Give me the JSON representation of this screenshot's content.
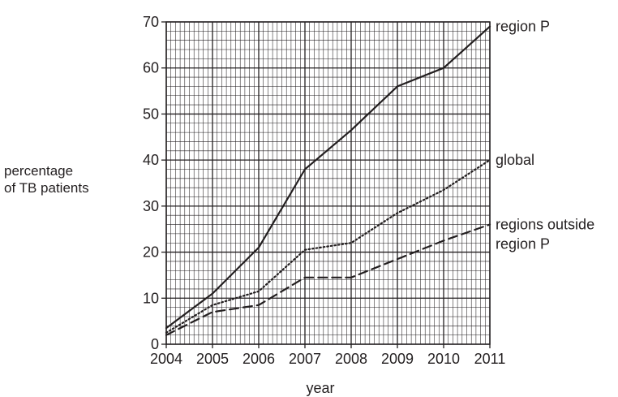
{
  "chart_data": {
    "type": "line",
    "title": "",
    "xlabel": "year",
    "ylabel_lines": [
      "percentage",
      "of TB patients"
    ],
    "x": [
      2004,
      2005,
      2006,
      2007,
      2008,
      2009,
      2010,
      2011
    ],
    "xlim": [
      2004,
      2011
    ],
    "ylim": [
      0,
      70
    ],
    "x_ticks": [
      2004,
      2005,
      2006,
      2007,
      2008,
      2009,
      2010,
      2011
    ],
    "y_ticks": [
      0,
      10,
      20,
      30,
      40,
      50,
      60,
      70
    ],
    "grid": true,
    "series": [
      {
        "key": "region-p",
        "name": "region P",
        "style": "solid",
        "values": [
          3.5,
          11,
          21,
          38,
          46.5,
          56,
          60,
          69
        ]
      },
      {
        "key": "global",
        "name": "global",
        "style": "dotted",
        "values": [
          2.5,
          8.5,
          11.5,
          20.5,
          22,
          28.5,
          33.5,
          40
        ]
      },
      {
        "key": "regions-outside",
        "name": "regions outside region P",
        "style": "dashed",
        "label_lines": [
          "regions outside",
          "region P"
        ],
        "values": [
          2,
          7,
          8.5,
          14.5,
          14.5,
          18.5,
          22.5,
          26
        ]
      }
    ],
    "colors": {
      "line": "#231f20",
      "grid": "#231f20",
      "background": "#ffffff"
    }
  }
}
